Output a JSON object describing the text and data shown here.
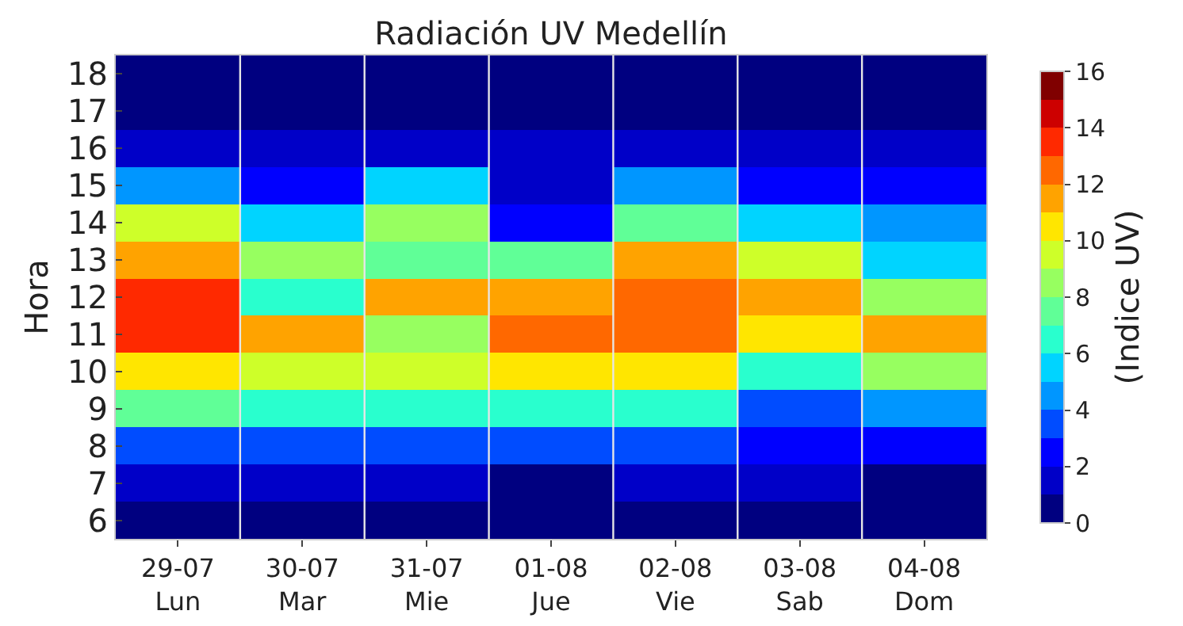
{
  "chart_data": {
    "type": "heatmap",
    "title": "Radiación UV Medellín",
    "ylabel": "Hora",
    "clabel": "(Indice UV)",
    "categories": [
      "29-07\nLun",
      "30-07\nMar",
      "31-07\nMie",
      "01-08\nJue",
      "02-08\nVie",
      "03-08\nSab",
      "04-08\nDom"
    ],
    "y_categories": [
      "18",
      "17",
      "16",
      "15",
      "14",
      "13",
      "12",
      "11",
      "10",
      "9",
      "8",
      "7",
      "6"
    ],
    "cells": [
      [
        0.5,
        0.5,
        0.5,
        0.5,
        0.5,
        0.5,
        0.5
      ],
      [
        0.5,
        0.5,
        0.5,
        0.5,
        0.5,
        0.5,
        0.5
      ],
      [
        1.5,
        1.5,
        1.5,
        1.5,
        1.5,
        1.5,
        1.5
      ],
      [
        4.5,
        2.5,
        5.5,
        1.5,
        4.5,
        2.5,
        2.5
      ],
      [
        9.5,
        5.5,
        8.5,
        2.5,
        7.5,
        5.5,
        4.5
      ],
      [
        11.5,
        8.5,
        7.5,
        7.5,
        11.5,
        9.5,
        5.5
      ],
      [
        13.5,
        6.5,
        11.5,
        11.5,
        12.5,
        11.5,
        8.5
      ],
      [
        13.5,
        11.5,
        8.5,
        12.5,
        12.5,
        10.5,
        11.5
      ],
      [
        10.5,
        9.5,
        9.5,
        10.5,
        10.5,
        6.5,
        8.5
      ],
      [
        7.5,
        6.5,
        6.5,
        6.5,
        6.5,
        3.5,
        4.5
      ],
      [
        3.5,
        3.5,
        3.5,
        3.5,
        3.5,
        2.5,
        2.5
      ],
      [
        1.5,
        1.5,
        1.5,
        0.5,
        1.5,
        1.5,
        0.5
      ],
      [
        0.5,
        0.5,
        0.5,
        0.5,
        0.5,
        0.5,
        0.5
      ]
    ],
    "clim": [
      0,
      16
    ],
    "cticks": [
      0,
      2,
      4,
      6,
      8,
      10,
      12,
      14,
      16
    ],
    "grid": "x"
  }
}
